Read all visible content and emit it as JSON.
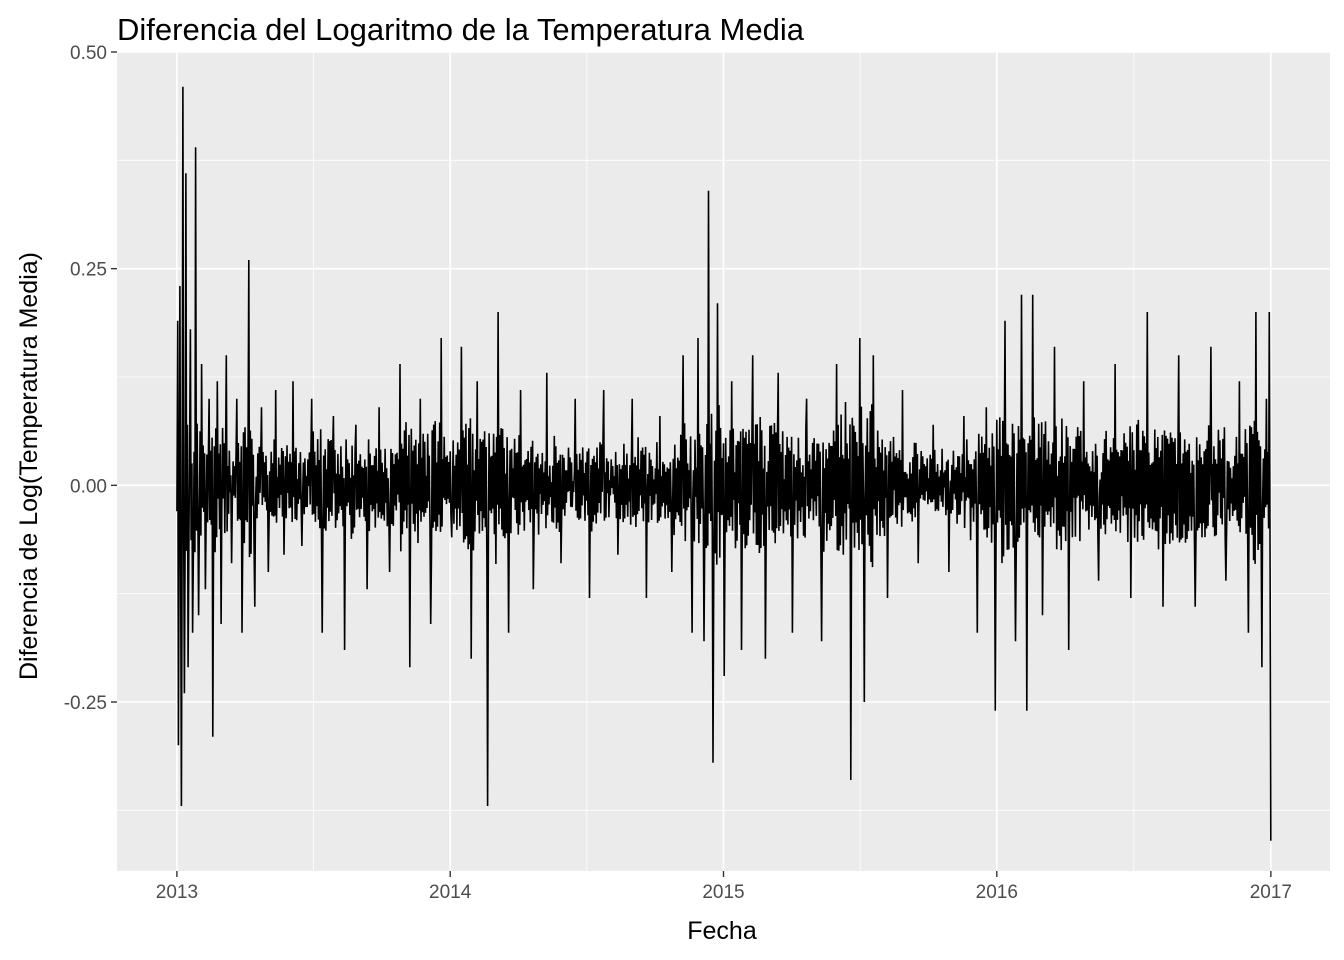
{
  "chart_data": {
    "type": "line",
    "title": "Diferencia del Logaritmo de la Temperatura Media",
    "xlabel": "Fecha",
    "ylabel": "Diferencia de Log(Temperatura Media)",
    "x_axis_type": "date",
    "xlim": [
      "2012-10-13",
      "2017-03-21"
    ],
    "ylim": [
      -0.445,
      0.5
    ],
    "x_ticks": [
      {
        "value": "2013-01-01",
        "label": "2013"
      },
      {
        "value": "2014-01-01",
        "label": "2014"
      },
      {
        "value": "2015-01-01",
        "label": "2015"
      },
      {
        "value": "2016-01-01",
        "label": "2016"
      },
      {
        "value": "2017-01-01",
        "label": "2017"
      }
    ],
    "y_ticks": [
      {
        "value": 0.5,
        "label": "0.50"
      },
      {
        "value": 0.25,
        "label": "0.25"
      },
      {
        "value": 0.0,
        "label": "0.00"
      },
      {
        "value": -0.25,
        "label": "-0.25"
      }
    ],
    "grid": true,
    "legend": "none",
    "colors": {
      "panel": "#ebebeb",
      "grid": "#ffffff",
      "line": "#000000"
    },
    "series": [
      {
        "x": [
          "2013-01-01",
          "2013-01-02",
          "2013-01-03",
          "2013-01-05",
          "2013-01-07",
          "2013-01-09",
          "2013-01-11",
          "2013-01-13",
          "2013-01-16",
          "2013-01-19",
          "2013-01-22",
          "2013-01-26",
          "2013-01-30",
          "2013-02-03",
          "2013-02-08",
          "2013-02-13",
          "2013-02-18",
          "2013-02-24",
          "2013-03-01",
          "2013-03-08",
          "2013-03-15",
          "2013-03-22",
          "2013-03-29",
          "2013-04-07",
          "2013-04-15",
          "2013-04-24",
          "2013-05-03",
          "2013-05-13",
          "2013-05-24",
          "2013-06-05",
          "2013-06-17",
          "2013-06-30",
          "2013-07-14",
          "2013-07-29",
          "2013-08-13",
          "2013-08-28",
          "2013-09-12",
          "2013-09-28",
          "2013-10-12",
          "2013-10-26",
          "2013-11-08",
          "2013-11-22",
          "2013-12-06",
          "2013-12-20",
          "2014-01-03",
          "2014-01-16",
          "2014-01-29",
          "2014-02-06",
          "2014-02-20",
          "2014-03-06",
          "2014-03-20",
          "2014-04-05",
          "2014-04-22",
          "2014-05-10",
          "2014-05-29",
          "2014-06-17",
          "2014-07-06",
          "2014-07-25",
          "2014-08-13",
          "2014-09-01",
          "2014-09-20",
          "2014-10-08",
          "2014-10-24",
          "2014-11-08",
          "2014-11-20",
          "2014-11-28",
          "2014-12-06",
          "2014-12-12",
          "2014-12-18",
          "2014-12-24",
          "2015-01-02",
          "2015-01-12",
          "2015-01-25",
          "2015-02-09",
          "2015-02-26",
          "2015-03-15",
          "2015-04-03",
          "2015-04-22",
          "2015-05-12",
          "2015-06-01",
          "2015-06-20",
          "2015-07-02",
          "2015-07-08",
          "2015-07-20",
          "2015-08-08",
          "2015-08-28",
          "2015-09-18",
          "2015-10-08",
          "2015-10-29",
          "2015-11-18",
          "2015-12-06",
          "2015-12-18",
          "2015-12-30",
          "2016-01-12",
          "2016-01-26",
          "2016-02-03",
          "2016-02-10",
          "2016-02-18",
          "2016-03-02",
          "2016-03-18",
          "2016-04-06",
          "2016-04-26",
          "2016-05-16",
          "2016-06-07",
          "2016-06-28",
          "2016-07-20",
          "2016-08-10",
          "2016-08-31",
          "2016-09-22",
          "2016-10-13",
          "2016-11-02",
          "2016-11-20",
          "2016-12-02",
          "2016-12-12",
          "2016-12-20",
          "2016-12-26",
          "2016-12-30",
          "2017-01-01"
        ],
        "y": [
          -0.03,
          0.19,
          -0.3,
          0.23,
          -0.37,
          0.46,
          -0.24,
          0.36,
          -0.21,
          0.18,
          -0.17,
          0.39,
          -0.15,
          0.14,
          -0.12,
          0.1,
          -0.29,
          0.12,
          -0.16,
          0.15,
          -0.09,
          0.1,
          -0.17,
          0.26,
          -0.14,
          0.09,
          -0.1,
          0.11,
          -0.08,
          0.12,
          -0.07,
          0.1,
          -0.17,
          0.08,
          -0.19,
          0.07,
          -0.12,
          0.09,
          -0.1,
          0.14,
          -0.21,
          0.1,
          -0.16,
          0.17,
          -0.06,
          0.16,
          -0.2,
          0.12,
          -0.37,
          0.2,
          -0.17,
          0.11,
          -0.12,
          0.13,
          -0.09,
          0.1,
          -0.13,
          0.11,
          -0.08,
          0.1,
          -0.13,
          0.08,
          -0.1,
          0.15,
          -0.17,
          0.17,
          -0.18,
          0.34,
          -0.32,
          0.21,
          -0.22,
          0.12,
          -0.19,
          0.15,
          -0.2,
          0.13,
          -0.17,
          0.1,
          -0.18,
          0.14,
          -0.34,
          0.17,
          -0.25,
          0.15,
          -0.13,
          0.11,
          -0.09,
          0.07,
          -0.1,
          0.08,
          -0.17,
          0.09,
          -0.26,
          0.19,
          -0.18,
          0.22,
          -0.26,
          0.22,
          -0.15,
          0.16,
          -0.19,
          0.12,
          -0.11,
          0.14,
          -0.13,
          0.2,
          -0.14,
          0.15,
          -0.14,
          0.16,
          -0.11,
          0.12,
          -0.17,
          0.2,
          -0.21,
          0.1,
          0.2,
          -0.41
        ]
      }
    ]
  }
}
